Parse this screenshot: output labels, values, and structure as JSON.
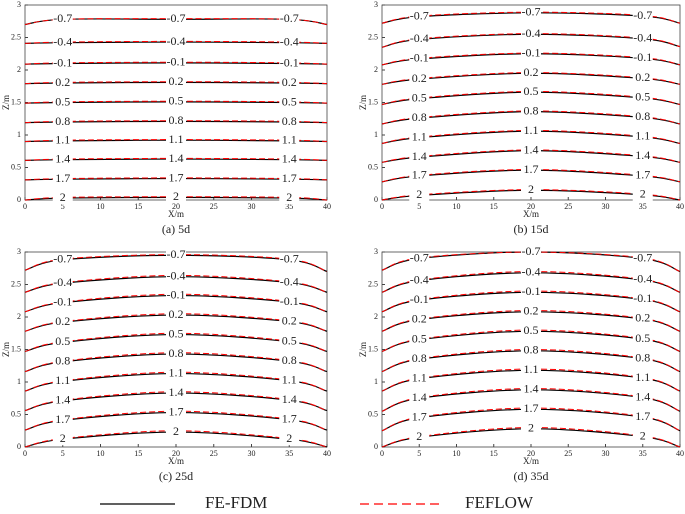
{
  "legend": [
    {
      "name": "FE-FDM",
      "color": "#000000",
      "dash": false
    },
    {
      "name": "FEFLOW",
      "color": "#ff0000",
      "dash": true
    }
  ],
  "chart_data": [
    {
      "type": "contour",
      "title": "(a)  5d",
      "xlabel": "X/m",
      "ylabel": "Z/m",
      "xlim": [
        0,
        40
      ],
      "ylim": [
        0,
        3
      ],
      "xticks": [
        0,
        5,
        10,
        15,
        20,
        25,
        30,
        35,
        40
      ],
      "yticks": [
        0,
        0.5,
        1,
        1.5,
        2,
        2.5,
        3
      ],
      "x": [
        0,
        5,
        20,
        35,
        40
      ],
      "contours": [
        {
          "level": -0.7,
          "series": [
            {
              "values": [
                2.7,
                2.78,
                2.78,
                2.78,
                2.7
              ]
            },
            {
              "values": [
                2.7,
                2.78,
                2.79,
                2.78,
                2.7
              ]
            }
          ]
        },
        {
          "level": -0.4,
          "series": [
            {
              "values": [
                2.41,
                2.42,
                2.43,
                2.42,
                2.41
              ]
            },
            {
              "values": [
                2.41,
                2.43,
                2.44,
                2.43,
                2.41
              ]
            }
          ]
        },
        {
          "level": -0.1,
          "series": [
            {
              "values": [
                2.09,
                2.1,
                2.11,
                2.1,
                2.09
              ]
            },
            {
              "values": [
                2.09,
                2.11,
                2.12,
                2.11,
                2.09
              ]
            }
          ]
        },
        {
          "level": 0.2,
          "series": [
            {
              "values": [
                1.79,
                1.8,
                1.81,
                1.8,
                1.79
              ]
            },
            {
              "values": [
                1.79,
                1.81,
                1.82,
                1.81,
                1.79
              ]
            }
          ]
        },
        {
          "level": 0.5,
          "series": [
            {
              "values": [
                1.49,
                1.5,
                1.51,
                1.5,
                1.49
              ]
            },
            {
              "values": [
                1.49,
                1.51,
                1.52,
                1.51,
                1.49
              ]
            }
          ]
        },
        {
          "level": 0.8,
          "series": [
            {
              "values": [
                1.19,
                1.2,
                1.21,
                1.2,
                1.19
              ]
            },
            {
              "values": [
                1.19,
                1.21,
                1.22,
                1.21,
                1.19
              ]
            }
          ]
        },
        {
          "level": 1.1,
          "series": [
            {
              "values": [
                0.9,
                0.91,
                0.92,
                0.91,
                0.9
              ]
            },
            {
              "values": [
                0.9,
                0.92,
                0.93,
                0.92,
                0.9
              ]
            }
          ]
        },
        {
          "level": 1.4,
          "series": [
            {
              "values": [
                0.61,
                0.62,
                0.63,
                0.62,
                0.61
              ]
            },
            {
              "values": [
                0.61,
                0.63,
                0.64,
                0.63,
                0.61
              ]
            }
          ]
        },
        {
          "level": 1.7,
          "series": [
            {
              "values": [
                0.31,
                0.32,
                0.33,
                0.32,
                0.31
              ]
            },
            {
              "values": [
                0.31,
                0.33,
                0.34,
                0.33,
                0.31
              ]
            }
          ]
        },
        {
          "level": 2,
          "series": [
            {
              "values": [
                0,
                0.03,
                0.04,
                0.03,
                0
              ]
            },
            {
              "values": [
                0,
                0.04,
                0.05,
                0.04,
                0
              ]
            }
          ]
        }
      ]
    },
    {
      "type": "contour",
      "title": "(b)  15d",
      "xlabel": "X/m",
      "ylabel": "Z/m",
      "xlim": [
        0,
        40
      ],
      "ylim": [
        0,
        3
      ],
      "xticks": [
        0,
        5,
        10,
        15,
        20,
        25,
        30,
        35,
        40
      ],
      "yticks": [
        0,
        0.5,
        1,
        1.5,
        2,
        2.5,
        3
      ],
      "x": [
        0,
        5,
        20,
        35,
        40
      ],
      "contours": [
        {
          "level": -0.7,
          "series": [
            {
              "values": [
                2.72,
                2.82,
                2.88,
                2.83,
                2.72
              ]
            },
            {
              "values": [
                2.72,
                2.83,
                2.89,
                2.84,
                2.72
              ]
            }
          ]
        },
        {
          "level": -0.4,
          "series": [
            {
              "values": [
                2.35,
                2.47,
                2.55,
                2.48,
                2.36
              ]
            },
            {
              "values": [
                2.35,
                2.48,
                2.56,
                2.49,
                2.36
              ]
            }
          ]
        },
        {
          "level": -0.1,
          "series": [
            {
              "values": [
                2.08,
                2.17,
                2.25,
                2.18,
                2.08
              ]
            },
            {
              "values": [
                2.08,
                2.18,
                2.26,
                2.19,
                2.08
              ]
            }
          ]
        },
        {
          "level": 0.2,
          "series": [
            {
              "values": [
                1.78,
                1.86,
                1.95,
                1.87,
                1.78
              ]
            },
            {
              "values": [
                1.78,
                1.87,
                1.96,
                1.88,
                1.78
              ]
            }
          ]
        },
        {
          "level": 0.5,
          "series": [
            {
              "values": [
                1.47,
                1.56,
                1.66,
                1.57,
                1.47
              ]
            },
            {
              "values": [
                1.47,
                1.57,
                1.67,
                1.58,
                1.47
              ]
            }
          ]
        },
        {
          "level": 0.8,
          "series": [
            {
              "values": [
                1.17,
                1.26,
                1.36,
                1.27,
                1.17
              ]
            },
            {
              "values": [
                1.17,
                1.27,
                1.37,
                1.28,
                1.17
              ]
            }
          ]
        },
        {
          "level": 1.1,
          "series": [
            {
              "values": [
                0.87,
                0.96,
                1.06,
                0.97,
                0.87
              ]
            },
            {
              "values": [
                0.87,
                0.97,
                1.07,
                0.98,
                0.87
              ]
            }
          ]
        },
        {
          "level": 1.4,
          "series": [
            {
              "values": [
                0.58,
                0.66,
                0.76,
                0.67,
                0.58
              ]
            },
            {
              "values": [
                0.58,
                0.67,
                0.77,
                0.68,
                0.58
              ]
            }
          ]
        },
        {
          "level": 1.7,
          "series": [
            {
              "values": [
                0.28,
                0.37,
                0.46,
                0.37,
                0.28
              ]
            },
            {
              "values": [
                0.28,
                0.38,
                0.47,
                0.38,
                0.28
              ]
            }
          ]
        },
        {
          "level": 2,
          "series": [
            {
              "values": [
                0,
                0.07,
                0.15,
                0.08,
                0
              ]
            },
            {
              "values": [
                0,
                0.08,
                0.16,
                0.09,
                0
              ]
            }
          ]
        }
      ]
    },
    {
      "type": "contour",
      "title": "(c)  25d",
      "xlabel": "X/m",
      "ylabel": "Z/m",
      "xlim": [
        0,
        40
      ],
      "ylim": [
        0,
        3
      ],
      "xticks": [
        0,
        5,
        10,
        15,
        20,
        25,
        30,
        35,
        40
      ],
      "yticks": [
        0,
        0.5,
        1,
        1.5,
        2,
        2.5,
        3
      ],
      "x": [
        0,
        5,
        20,
        35,
        40
      ],
      "contours": [
        {
          "level": -0.7,
          "series": [
            {
              "values": [
                2.72,
                2.88,
                2.95,
                2.88,
                2.7
              ]
            },
            {
              "values": [
                2.72,
                2.89,
                2.96,
                2.89,
                2.7
              ]
            }
          ]
        },
        {
          "level": -0.4,
          "series": [
            {
              "values": [
                2.38,
                2.52,
                2.62,
                2.53,
                2.38
              ]
            },
            {
              "values": [
                2.38,
                2.53,
                2.64,
                2.54,
                2.38
              ]
            }
          ]
        },
        {
          "level": -0.1,
          "series": [
            {
              "values": [
                2.08,
                2.22,
                2.33,
                2.23,
                2.08
              ]
            },
            {
              "values": [
                2.08,
                2.23,
                2.35,
                2.24,
                2.08
              ]
            }
          ]
        },
        {
          "level": 0.2,
          "series": [
            {
              "values": [
                1.78,
                1.92,
                2.03,
                1.93,
                1.78
              ]
            },
            {
              "values": [
                1.78,
                1.93,
                2.05,
                1.94,
                1.78
              ]
            }
          ]
        },
        {
          "level": 0.5,
          "series": [
            {
              "values": [
                1.47,
                1.61,
                1.73,
                1.62,
                1.47
              ]
            },
            {
              "values": [
                1.47,
                1.62,
                1.75,
                1.63,
                1.47
              ]
            }
          ]
        },
        {
          "level": 0.8,
          "series": [
            {
              "values": [
                1.16,
                1.31,
                1.43,
                1.32,
                1.16
              ]
            },
            {
              "values": [
                1.16,
                1.32,
                1.45,
                1.33,
                1.16
              ]
            }
          ]
        },
        {
          "level": 1.1,
          "series": [
            {
              "values": [
                0.86,
                1.01,
                1.13,
                1.02,
                0.86
              ]
            },
            {
              "values": [
                0.86,
                1.02,
                1.15,
                1.03,
                0.86
              ]
            }
          ]
        },
        {
          "level": 1.4,
          "series": [
            {
              "values": [
                0.56,
                0.71,
                0.83,
                0.72,
                0.56
              ]
            },
            {
              "values": [
                0.56,
                0.72,
                0.85,
                0.73,
                0.56
              ]
            }
          ]
        },
        {
          "level": 1.7,
          "series": [
            {
              "values": [
                0.26,
                0.41,
                0.53,
                0.42,
                0.26
              ]
            },
            {
              "values": [
                0.26,
                0.42,
                0.55,
                0.43,
                0.26
              ]
            }
          ]
        },
        {
          "level": 2,
          "series": [
            {
              "values": [
                0,
                0.12,
                0.23,
                0.12,
                0
              ]
            },
            {
              "values": [
                0,
                0.13,
                0.25,
                0.13,
                0
              ]
            }
          ]
        }
      ]
    },
    {
      "type": "contour",
      "title": "(d)  35d",
      "xlabel": "X/m",
      "ylabel": "Z/m",
      "xlim": [
        0,
        40
      ],
      "ylim": [
        0,
        3
      ],
      "xticks": [
        0,
        5,
        10,
        15,
        20,
        25,
        30,
        35,
        40
      ],
      "yticks": [
        0,
        0.5,
        1,
        1.5,
        2,
        2.5,
        3
      ],
      "x": [
        0,
        5,
        20,
        35,
        40
      ],
      "contours": [
        {
          "level": -0.7,
          "series": [
            {
              "values": [
                2.72,
                2.9,
                3.0,
                2.9,
                2.7
              ]
            },
            {
              "values": [
                2.72,
                2.91,
                3.0,
                2.91,
                2.7
              ]
            }
          ]
        },
        {
          "level": -0.4,
          "series": [
            {
              "values": [
                2.38,
                2.56,
                2.68,
                2.57,
                2.38
              ]
            },
            {
              "values": [
                2.38,
                2.57,
                2.7,
                2.58,
                2.38
              ]
            }
          ]
        },
        {
          "level": -0.1,
          "series": [
            {
              "values": [
                2.08,
                2.26,
                2.38,
                2.27,
                2.08
              ]
            },
            {
              "values": [
                2.08,
                2.27,
                2.4,
                2.28,
                2.08
              ]
            }
          ]
        },
        {
          "level": 0.2,
          "series": [
            {
              "values": [
                1.78,
                1.96,
                2.08,
                1.97,
                1.78
              ]
            },
            {
              "values": [
                1.78,
                1.97,
                2.1,
                1.98,
                1.78
              ]
            }
          ]
        },
        {
          "level": 0.5,
          "series": [
            {
              "values": [
                1.47,
                1.65,
                1.78,
                1.66,
                1.47
              ]
            },
            {
              "values": [
                1.47,
                1.66,
                1.8,
                1.67,
                1.47
              ]
            }
          ]
        },
        {
          "level": 0.8,
          "series": [
            {
              "values": [
                1.16,
                1.35,
                1.48,
                1.36,
                1.16
              ]
            },
            {
              "values": [
                1.16,
                1.36,
                1.5,
                1.37,
                1.16
              ]
            }
          ]
        },
        {
          "level": 1.1,
          "series": [
            {
              "values": [
                0.86,
                1.05,
                1.18,
                1.06,
                0.86
              ]
            },
            {
              "values": [
                0.86,
                1.06,
                1.2,
                1.07,
                0.86
              ]
            }
          ]
        },
        {
          "level": 1.4,
          "series": [
            {
              "values": [
                0.55,
                0.75,
                0.88,
                0.76,
                0.55
              ]
            },
            {
              "values": [
                0.55,
                0.76,
                0.9,
                0.77,
                0.55
              ]
            }
          ]
        },
        {
          "level": 1.7,
          "series": [
            {
              "values": [
                0.25,
                0.45,
                0.58,
                0.46,
                0.25
              ]
            },
            {
              "values": [
                0.25,
                0.46,
                0.6,
                0.47,
                0.25
              ]
            }
          ]
        },
        {
          "level": 2,
          "series": [
            {
              "values": [
                0,
                0.15,
                0.28,
                0.16,
                0
              ]
            },
            {
              "values": [
                0,
                0.16,
                0.3,
                0.17,
                0
              ]
            }
          ]
        }
      ]
    }
  ]
}
